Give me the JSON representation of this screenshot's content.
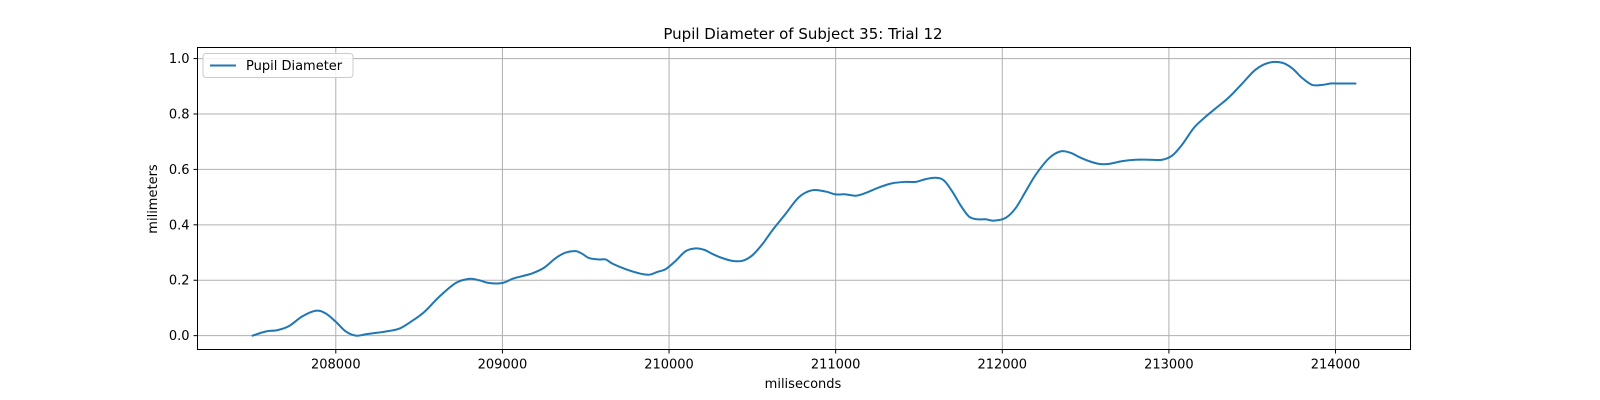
{
  "chart_data": {
    "type": "line",
    "title": "Pupil Diameter of Subject 35: Trial 12",
    "xlabel": "miliseconds",
    "ylabel": "milimeters",
    "xlim": [
      207170,
      214450
    ],
    "ylim": [
      -0.05,
      1.04
    ],
    "x_ticks": [
      208000,
      209000,
      210000,
      211000,
      212000,
      213000,
      214000
    ],
    "y_ticks": [
      0.0,
      0.2,
      0.4,
      0.6,
      0.8,
      1.0
    ],
    "x_tick_labels": [
      "208000",
      "209000",
      "210000",
      "211000",
      "212000",
      "213000",
      "214000"
    ],
    "y_tick_labels": [
      "0.0",
      "0.2",
      "0.4",
      "0.6",
      "0.8",
      "1.0"
    ],
    "grid": true,
    "legend_position": "upper-left",
    "series": [
      {
        "name": "Pupil Diameter",
        "color": "#1f77b4",
        "x": [
          207500,
          207580,
          207650,
          207720,
          207800,
          207880,
          207940,
          208000,
          208060,
          208120,
          208180,
          208240,
          208300,
          208380,
          208450,
          208530,
          208620,
          208720,
          208800,
          208860,
          208920,
          209000,
          209060,
          209120,
          209180,
          209250,
          209320,
          209380,
          209440,
          209480,
          209520,
          209580,
          209620,
          209660,
          209740,
          209820,
          209880,
          209930,
          209980,
          210040,
          210100,
          210160,
          210210,
          210260,
          210320,
          210380,
          210440,
          210500,
          210560,
          210620,
          210700,
          210780,
          210860,
          210940,
          211000,
          211060,
          211120,
          211180,
          211260,
          211340,
          211420,
          211480,
          211540,
          211600,
          211650,
          211700,
          211750,
          211800,
          211850,
          211900,
          211950,
          212020,
          212080,
          212140,
          212200,
          212280,
          212350,
          212410,
          212460,
          212520,
          212580,
          212640,
          212720,
          212800,
          212880,
          212960,
          213020,
          213080,
          213150,
          213220,
          213280,
          213360,
          213440,
          213520,
          213600,
          213680,
          213740,
          213800,
          213860,
          213920,
          213970,
          214020,
          214060,
          214120
        ],
        "y": [
          0.0,
          0.015,
          0.02,
          0.035,
          0.07,
          0.09,
          0.08,
          0.05,
          0.015,
          0.0,
          0.005,
          0.01,
          0.015,
          0.025,
          0.05,
          0.085,
          0.14,
          0.19,
          0.205,
          0.2,
          0.19,
          0.19,
          0.205,
          0.215,
          0.225,
          0.245,
          0.28,
          0.3,
          0.305,
          0.295,
          0.28,
          0.275,
          0.275,
          0.26,
          0.24,
          0.225,
          0.22,
          0.23,
          0.24,
          0.27,
          0.305,
          0.315,
          0.31,
          0.295,
          0.28,
          0.27,
          0.27,
          0.29,
          0.33,
          0.38,
          0.44,
          0.5,
          0.525,
          0.52,
          0.51,
          0.51,
          0.505,
          0.515,
          0.535,
          0.55,
          0.555,
          0.555,
          0.565,
          0.57,
          0.56,
          0.52,
          0.47,
          0.43,
          0.42,
          0.42,
          0.415,
          0.425,
          0.46,
          0.52,
          0.58,
          0.64,
          0.665,
          0.66,
          0.645,
          0.63,
          0.62,
          0.62,
          0.63,
          0.635,
          0.635,
          0.635,
          0.65,
          0.69,
          0.75,
          0.79,
          0.82,
          0.86,
          0.91,
          0.96,
          0.985,
          0.985,
          0.965,
          0.93,
          0.905,
          0.905,
          0.91,
          0.91,
          0.91,
          0.91
        ]
      }
    ]
  }
}
